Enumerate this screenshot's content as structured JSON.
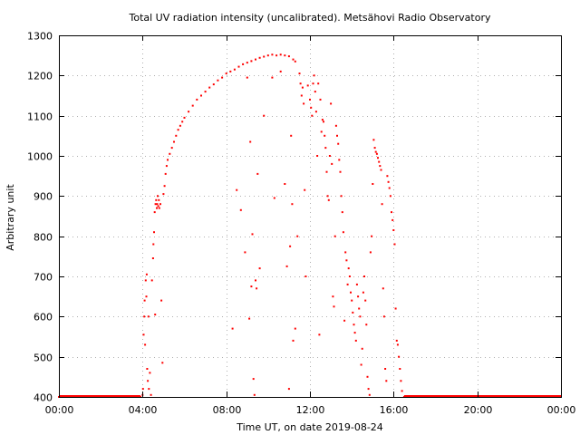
{
  "chart_data": {
    "type": "scatter",
    "title": "Total UV radiation intensity (uncalibrated). Metsähovi Radio Observatory",
    "xlabel": "Time UT, on date 2019-08-24",
    "ylabel": "Arbitrary unit",
    "xlim": [
      0,
      24
    ],
    "ylim": [
      400,
      1300
    ],
    "x_tick_labels": [
      "00:00",
      "04:00",
      "08:00",
      "12:00",
      "16:00",
      "20:00",
      "00:00"
    ],
    "x_tick_values": [
      0,
      4,
      8,
      12,
      16,
      20,
      24
    ],
    "y_ticks": [
      400,
      500,
      600,
      700,
      800,
      900,
      1000,
      1100,
      1200,
      1300
    ],
    "grid": true,
    "marker_color": "#ff0000",
    "series": [
      {
        "x_unit": "hours UT",
        "points": [
          [
            0.0,
            400
          ],
          [
            0.5,
            400
          ],
          [
            1.0,
            400
          ],
          [
            1.5,
            400
          ],
          [
            2.0,
            400
          ],
          [
            2.5,
            400
          ],
          [
            3.0,
            400
          ],
          [
            3.5,
            400
          ],
          [
            3.9,
            400
          ],
          [
            4.0,
            405
          ],
          [
            4.02,
            420
          ],
          [
            4.05,
            555
          ],
          [
            4.08,
            600
          ],
          [
            4.1,
            640
          ],
          [
            4.12,
            530
          ],
          [
            4.15,
            690
          ],
          [
            4.18,
            650
          ],
          [
            4.2,
            705
          ],
          [
            4.22,
            470
          ],
          [
            4.25,
            440
          ],
          [
            4.28,
            600
          ],
          [
            4.3,
            420
          ],
          [
            4.35,
            460
          ],
          [
            4.4,
            405
          ],
          [
            4.45,
            690
          ],
          [
            4.5,
            745
          ],
          [
            4.52,
            780
          ],
          [
            4.55,
            810
          ],
          [
            4.58,
            860
          ],
          [
            4.6,
            605
          ],
          [
            4.62,
            880
          ],
          [
            4.65,
            890
          ],
          [
            4.68,
            870
          ],
          [
            4.7,
            880
          ],
          [
            4.72,
            900
          ],
          [
            4.75,
            875
          ],
          [
            4.78,
            890
          ],
          [
            4.8,
            870
          ],
          [
            4.85,
            880
          ],
          [
            4.9,
            640
          ],
          [
            4.95,
            485
          ],
          [
            5.0,
            905
          ],
          [
            5.05,
            925
          ],
          [
            5.1,
            955
          ],
          [
            5.15,
            975
          ],
          [
            5.2,
            990
          ],
          [
            5.3,
            1005
          ],
          [
            5.4,
            1020
          ],
          [
            5.5,
            1035
          ],
          [
            5.6,
            1050
          ],
          [
            5.7,
            1065
          ],
          [
            5.8,
            1075
          ],
          [
            5.9,
            1085
          ],
          [
            6.0,
            1095
          ],
          [
            6.2,
            1110
          ],
          [
            6.4,
            1125
          ],
          [
            6.6,
            1140
          ],
          [
            6.8,
            1150
          ],
          [
            7.0,
            1160
          ],
          [
            7.2,
            1170
          ],
          [
            7.4,
            1178
          ],
          [
            7.6,
            1188
          ],
          [
            7.8,
            1195
          ],
          [
            8.0,
            1205
          ],
          [
            8.2,
            1210
          ],
          [
            8.4,
            1215
          ],
          [
            8.6,
            1222
          ],
          [
            8.8,
            1228
          ],
          [
            9.0,
            1232
          ],
          [
            9.2,
            1236
          ],
          [
            9.4,
            1240
          ],
          [
            9.6,
            1244
          ],
          [
            9.8,
            1247
          ],
          [
            10.0,
            1250
          ],
          [
            10.2,
            1252
          ],
          [
            10.4,
            1250
          ],
          [
            10.6,
            1252
          ],
          [
            10.8,
            1250
          ],
          [
            11.0,
            1248
          ],
          [
            11.2,
            1240
          ],
          [
            11.3,
            1235
          ],
          [
            8.3,
            570
          ],
          [
            8.5,
            915
          ],
          [
            8.7,
            865
          ],
          [
            8.9,
            760
          ],
          [
            9.0,
            1195
          ],
          [
            9.1,
            595
          ],
          [
            9.15,
            1035
          ],
          [
            9.2,
            675
          ],
          [
            9.25,
            805
          ],
          [
            9.3,
            445
          ],
          [
            9.35,
            405
          ],
          [
            9.4,
            690
          ],
          [
            9.45,
            670
          ],
          [
            9.5,
            955
          ],
          [
            9.6,
            720
          ],
          [
            9.8,
            1100
          ],
          [
            10.2,
            1195
          ],
          [
            10.3,
            895
          ],
          [
            10.6,
            1210
          ],
          [
            10.8,
            930
          ],
          [
            10.9,
            725
          ],
          [
            11.0,
            420
          ],
          [
            11.05,
            775
          ],
          [
            11.1,
            1050
          ],
          [
            11.15,
            880
          ],
          [
            11.2,
            540
          ],
          [
            11.3,
            570
          ],
          [
            11.4,
            800
          ],
          [
            11.5,
            1205
          ],
          [
            11.55,
            1180
          ],
          [
            11.6,
            1150
          ],
          [
            11.65,
            1170
          ],
          [
            11.7,
            1130
          ],
          [
            11.75,
            915
          ],
          [
            11.8,
            700
          ],
          [
            11.9,
            1175
          ],
          [
            12.0,
            1140
          ],
          [
            12.05,
            1120
          ],
          [
            12.1,
            1100
          ],
          [
            12.15,
            1180
          ],
          [
            12.2,
            1200
          ],
          [
            12.25,
            1160
          ],
          [
            12.3,
            1110
          ],
          [
            12.35,
            1000
          ],
          [
            12.4,
            1180
          ],
          [
            12.45,
            555
          ],
          [
            12.5,
            1140
          ],
          [
            12.55,
            1060
          ],
          [
            12.6,
            1090
          ],
          [
            12.65,
            1085
          ],
          [
            12.7,
            1050
          ],
          [
            12.75,
            1020
          ],
          [
            12.8,
            960
          ],
          [
            12.85,
            900
          ],
          [
            12.9,
            890
          ],
          [
            12.95,
            1000
          ],
          [
            13.0,
            1130
          ],
          [
            13.05,
            980
          ],
          [
            13.1,
            650
          ],
          [
            13.15,
            625
          ],
          [
            13.2,
            800
          ],
          [
            13.25,
            1075
          ],
          [
            13.3,
            1050
          ],
          [
            13.35,
            1030
          ],
          [
            13.4,
            990
          ],
          [
            13.45,
            960
          ],
          [
            13.5,
            900
          ],
          [
            13.55,
            860
          ],
          [
            13.6,
            810
          ],
          [
            13.65,
            590
          ],
          [
            13.7,
            760
          ],
          [
            13.75,
            740
          ],
          [
            13.8,
            680
          ],
          [
            13.85,
            720
          ],
          [
            13.9,
            700
          ],
          [
            13.95,
            660
          ],
          [
            14.0,
            640
          ],
          [
            14.05,
            610
          ],
          [
            14.1,
            580
          ],
          [
            14.15,
            560
          ],
          [
            14.2,
            540
          ],
          [
            14.25,
            680
          ],
          [
            14.3,
            650
          ],
          [
            14.35,
            620
          ],
          [
            14.4,
            600
          ],
          [
            14.45,
            480
          ],
          [
            14.5,
            520
          ],
          [
            14.55,
            660
          ],
          [
            14.6,
            700
          ],
          [
            14.65,
            640
          ],
          [
            14.7,
            580
          ],
          [
            14.75,
            450
          ],
          [
            14.8,
            420
          ],
          [
            14.85,
            405
          ],
          [
            14.9,
            760
          ],
          [
            14.95,
            800
          ],
          [
            15.0,
            930
          ],
          [
            15.05,
            1040
          ],
          [
            15.1,
            1020
          ],
          [
            15.15,
            1010
          ],
          [
            15.2,
            1005
          ],
          [
            15.25,
            995
          ],
          [
            15.3,
            985
          ],
          [
            15.35,
            975
          ],
          [
            15.4,
            965
          ],
          [
            15.45,
            880
          ],
          [
            15.5,
            670
          ],
          [
            15.55,
            600
          ],
          [
            15.6,
            470
          ],
          [
            15.65,
            440
          ],
          [
            15.7,
            950
          ],
          [
            15.75,
            935
          ],
          [
            15.8,
            920
          ],
          [
            15.85,
            900
          ],
          [
            15.9,
            860
          ],
          [
            15.95,
            840
          ],
          [
            16.0,
            815
          ],
          [
            16.05,
            780
          ],
          [
            16.1,
            620
          ],
          [
            16.15,
            540
          ],
          [
            16.2,
            530
          ],
          [
            16.25,
            500
          ],
          [
            16.3,
            470
          ],
          [
            16.35,
            440
          ],
          [
            16.4,
            415
          ],
          [
            16.5,
            400
          ],
          [
            17.0,
            400
          ],
          [
            18.0,
            400
          ],
          [
            19.0,
            400
          ],
          [
            20.0,
            400
          ],
          [
            21.0,
            400
          ],
          [
            22.0,
            400
          ],
          [
            23.0,
            400
          ],
          [
            24.0,
            400
          ]
        ]
      }
    ]
  }
}
